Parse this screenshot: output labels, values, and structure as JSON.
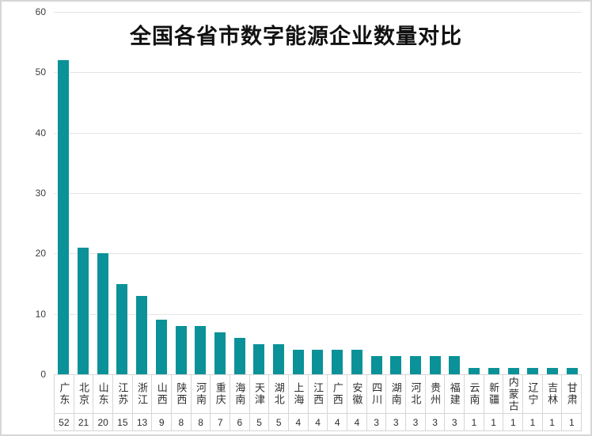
{
  "chart": {
    "title": "全国各省市数字能源企业数量对比"
  },
  "chart_data": {
    "type": "bar",
    "title": "全国各省市数字能源企业数量对比",
    "categories": [
      "广东",
      "北京",
      "山东",
      "江苏",
      "浙江",
      "山西",
      "陕西",
      "河南",
      "重庆",
      "海南",
      "天津",
      "湖北",
      "上海",
      "江西",
      "广西",
      "安徽",
      "四川",
      "湖南",
      "河北",
      "贵州",
      "福建",
      "云南",
      "新疆",
      "内蒙古",
      "辽宁",
      "吉林",
      "甘肃"
    ],
    "values": [
      52,
      21,
      20,
      15,
      13,
      9,
      8,
      8,
      7,
      6,
      5,
      5,
      4,
      4,
      4,
      4,
      3,
      3,
      3,
      3,
      3,
      1,
      1,
      1,
      1,
      1,
      1
    ],
    "xlabel": "",
    "ylabel": "",
    "ylim": [
      0,
      60
    ],
    "yticks": [
      0,
      10,
      20,
      30,
      40,
      50,
      60
    ],
    "grid": true,
    "legend_shown": false,
    "data_table_shown": true,
    "bar_color": "#0a9298",
    "gridline_color": "#e4e4e4",
    "table_border_color": "#d6d6d6"
  }
}
